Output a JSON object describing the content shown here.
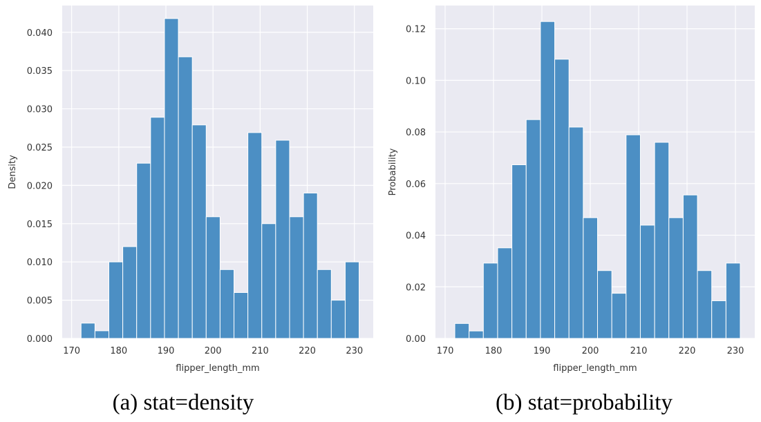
{
  "colors": {
    "bar": "#4c8fc4",
    "bar_edge": "#ffffff",
    "plot_bg": "#eaeaf2",
    "grid": "#ffffff"
  },
  "chart_data": [
    {
      "type": "bar",
      "xlabel": "flipper_length_mm",
      "ylabel": "Density",
      "caption": "(a) stat=density",
      "xlim": [
        168,
        234
      ],
      "ylim": [
        0,
        0.0435
      ],
      "xticks": [
        170,
        180,
        190,
        200,
        210,
        220,
        230
      ],
      "xtick_labels": [
        "170",
        "180",
        "190",
        "200",
        "210",
        "220",
        "230"
      ],
      "yticks": [
        0,
        0.005,
        0.01,
        0.015,
        0.02,
        0.025,
        0.03,
        0.035,
        0.04
      ],
      "ytick_labels": [
        "0.000",
        "0.005",
        "0.010",
        "0.015",
        "0.020",
        "0.025",
        "0.030",
        "0.035",
        "0.040"
      ],
      "bin_edges": [
        172.0,
        174.95,
        177.9,
        180.85,
        183.8,
        186.75,
        189.7,
        192.65,
        195.6,
        198.55,
        201.5,
        204.45,
        207.4,
        210.35,
        213.3,
        216.25,
        219.2,
        222.15,
        225.1,
        228.05,
        231.0
      ],
      "values": [
        0.002,
        0.001,
        0.01,
        0.012,
        0.0229,
        0.0289,
        0.0418,
        0.0368,
        0.0279,
        0.0159,
        0.009,
        0.006,
        0.0269,
        0.015,
        0.0259,
        0.0159,
        0.019,
        0.009,
        0.005,
        0.01
      ]
    },
    {
      "type": "bar",
      "xlabel": "flipper_length_mm",
      "ylabel": "Probability",
      "caption": "(b) stat=probability",
      "xlim": [
        168,
        234
      ],
      "ylim": [
        0,
        0.129
      ],
      "xticks": [
        170,
        180,
        190,
        200,
        210,
        220,
        230
      ],
      "xtick_labels": [
        "170",
        "180",
        "190",
        "200",
        "210",
        "220",
        "230"
      ],
      "yticks": [
        0,
        0.02,
        0.04,
        0.06,
        0.08,
        0.1,
        0.12
      ],
      "ytick_labels": [
        "0.00",
        "0.02",
        "0.04",
        "0.06",
        "0.08",
        "0.10",
        "0.12"
      ],
      "bin_edges": [
        172.0,
        174.95,
        177.9,
        180.85,
        183.8,
        186.75,
        189.7,
        192.65,
        195.6,
        198.55,
        201.5,
        204.45,
        207.4,
        210.35,
        213.3,
        216.25,
        219.2,
        222.15,
        225.1,
        228.05,
        231.0
      ],
      "values": [
        0.0058,
        0.0029,
        0.0292,
        0.0351,
        0.0673,
        0.0848,
        0.1228,
        0.1082,
        0.0819,
        0.0468,
        0.0263,
        0.0175,
        0.0789,
        0.0439,
        0.076,
        0.0468,
        0.0556,
        0.0263,
        0.0146,
        0.0292
      ]
    }
  ]
}
